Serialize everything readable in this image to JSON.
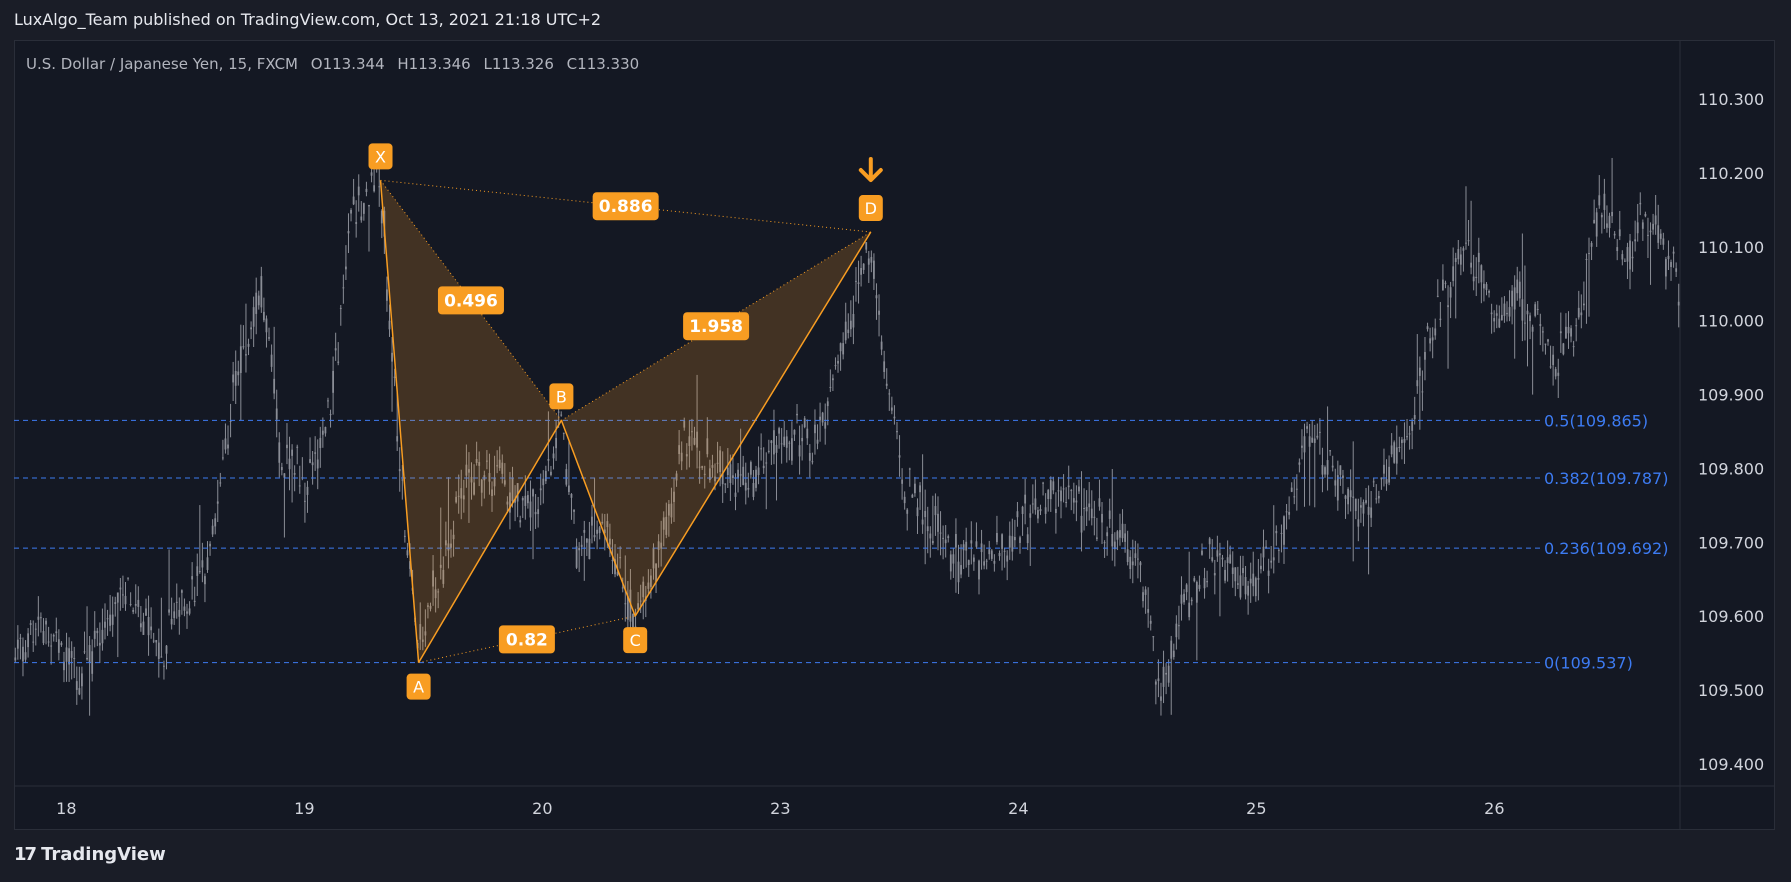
{
  "header": {
    "title": "LuxAlgo_Team published on TradingView.com, Oct 13, 2021 21:18 UTC+2"
  },
  "footer": {
    "brand": "TradingView",
    "logo_icon": "tradingview-logo-icon"
  },
  "chart_data": {
    "type": "candlestick",
    "symbol_line": {
      "symbol": "U.S. Dollar / Japanese Yen, 15, FXCM",
      "open": "O113.344",
      "high": "H113.346",
      "low": "L113.326",
      "close": "C113.330"
    },
    "y_ticks": [
      "110.300",
      "110.200",
      "110.100",
      "110.000",
      "109.900",
      "109.800",
      "109.700",
      "109.600",
      "109.500",
      "109.400"
    ],
    "y_tick_values": [
      110.3,
      110.2,
      110.1,
      110.0,
      109.9,
      109.8,
      109.7,
      109.6,
      109.5,
      109.4
    ],
    "ylim": [
      109.37,
      110.38
    ],
    "x_ticks": [
      "18",
      "19",
      "20",
      "23",
      "24",
      "25",
      "26"
    ],
    "x_tick_positions": [
      0.5,
      1.5,
      2.5,
      3.5,
      4.5,
      5.5,
      6.5
    ],
    "xlim": [
      0.28,
      7.28
    ],
    "fib_levels": [
      {
        "label": "0.5(109.865)",
        "value": 109.865
      },
      {
        "label": "0.382(109.787)",
        "value": 109.787
      },
      {
        "label": "0.236(109.692)",
        "value": 109.692
      },
      {
        "label": "0(109.537)",
        "value": 109.537
      }
    ],
    "pattern": {
      "points": [
        {
          "name": "X",
          "t": 1.82,
          "price": 110.19
        },
        {
          "name": "A",
          "t": 1.98,
          "price": 109.537
        },
        {
          "name": "B",
          "t": 2.58,
          "price": 109.865
        },
        {
          "name": "C",
          "t": 2.89,
          "price": 109.6
        },
        {
          "name": "D",
          "t": 3.88,
          "price": 110.12
        }
      ],
      "ratios": [
        {
          "label": "0.496",
          "from": "X",
          "to": "B"
        },
        {
          "label": "0.82",
          "from": "A",
          "to": "C"
        },
        {
          "label": "1.958",
          "from": "B",
          "to": "D"
        },
        {
          "label": "0.886",
          "from": "X",
          "to": "D"
        }
      ],
      "signal": "arrow-down-icon"
    },
    "price_path": [
      [
        0.28,
        109.55
      ],
      [
        0.4,
        109.6
      ],
      [
        0.55,
        109.52
      ],
      [
        0.75,
        109.65
      ],
      [
        0.9,
        109.56
      ],
      [
        1.1,
        109.68
      ],
      [
        1.2,
        109.9
      ],
      [
        1.32,
        110.04
      ],
      [
        1.4,
        109.82
      ],
      [
        1.52,
        109.78
      ],
      [
        1.62,
        109.9
      ],
      [
        1.7,
        110.15
      ],
      [
        1.78,
        110.18
      ],
      [
        1.82,
        110.19
      ],
      [
        1.9,
        109.8
      ],
      [
        1.98,
        109.55
      ],
      [
        2.1,
        109.7
      ],
      [
        2.2,
        109.8
      ],
      [
        2.35,
        109.78
      ],
      [
        2.45,
        109.74
      ],
      [
        2.58,
        109.86
      ],
      [
        2.65,
        109.68
      ],
      [
        2.75,
        109.72
      ],
      [
        2.89,
        109.6
      ],
      [
        3.0,
        109.7
      ],
      [
        3.1,
        109.85
      ],
      [
        3.2,
        109.8
      ],
      [
        3.35,
        109.78
      ],
      [
        3.5,
        109.85
      ],
      [
        3.65,
        109.84
      ],
      [
        3.75,
        109.95
      ],
      [
        3.88,
        110.1
      ],
      [
        3.95,
        109.9
      ],
      [
        4.02,
        109.78
      ],
      [
        4.15,
        109.72
      ],
      [
        4.3,
        109.67
      ],
      [
        4.5,
        109.72
      ],
      [
        4.7,
        109.78
      ],
      [
        4.85,
        109.72
      ],
      [
        5.0,
        109.68
      ],
      [
        5.1,
        109.5
      ],
      [
        5.2,
        109.62
      ],
      [
        5.3,
        109.68
      ],
      [
        5.45,
        109.64
      ],
      [
        5.6,
        109.7
      ],
      [
        5.72,
        109.85
      ],
      [
        5.85,
        109.78
      ],
      [
        5.95,
        109.74
      ],
      [
        6.05,
        109.8
      ],
      [
        6.15,
        109.86
      ],
      [
        6.25,
        110.0
      ],
      [
        6.38,
        110.1
      ],
      [
        6.5,
        110.0
      ],
      [
        6.65,
        110.02
      ],
      [
        6.75,
        109.95
      ],
      [
        6.85,
        110.0
      ],
      [
        6.95,
        110.16
      ],
      [
        7.05,
        110.1
      ],
      [
        7.15,
        110.14
      ],
      [
        7.28,
        110.05
      ]
    ]
  },
  "colors": {
    "background": "#141823",
    "candle": "#8a8d96",
    "pattern": "#f89d22",
    "pattern_fill": "#f89d22",
    "fib": "#3d7bf2",
    "label_bg": "#f89d22"
  }
}
